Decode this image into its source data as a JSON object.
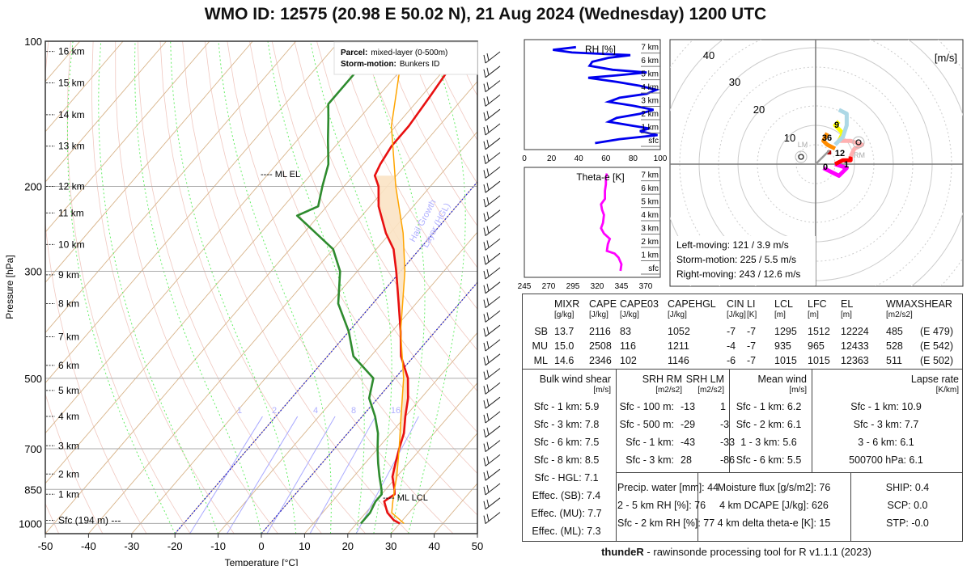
{
  "title": "WMO ID: 12575 (20.98 E 50.02 N), 21 Aug 2024 (Wednesday) 1200 UTC",
  "footer": {
    "bold": "thundeR",
    "rest": " - rawinsonde processing tool for R v1.1.1 (2023)"
  },
  "chart_data": [
    {
      "type": "line",
      "name": "skew-T",
      "xlabel": "Temperature [°C]",
      "ylabel": "Pressure [hPa]",
      "xlim": [
        -50,
        50
      ],
      "ylim": [
        1050,
        100
      ],
      "x_ticks": [
        "-50",
        "-40",
        "-30",
        "-20",
        "-10",
        "0",
        "10",
        "20",
        "30",
        "40",
        "50"
      ],
      "y_ticks": [
        "100",
        "200",
        "300",
        "500",
        "700",
        "850",
        "1000"
      ],
      "height_labels": [
        "16 km",
        "15 km",
        "14 km",
        "13 km",
        "12 km",
        "11 km",
        "10 km",
        "9 km",
        "8 km",
        "7 km",
        "6 km",
        "5 km",
        "4 km",
        "3 km",
        "2 km",
        "1 km",
        "Sfc (194 m) ---"
      ],
      "height_pressures": [
        105,
        122,
        142,
        165,
        200,
        227,
        264,
        305,
        350,
        410,
        470,
        530,
        600,
        690,
        790,
        870,
        985
      ],
      "annotations": {
        "ml_el": "---- ML EL",
        "ml_lcl": "---- ML LCL",
        "hgl": "Hail Growth",
        "hgl2": "Layer (HGL)",
        "mixing_ratio_labels": [
          "1",
          "2",
          "4",
          "8",
          "16"
        ]
      },
      "legend": {
        "parcel_label": "Parcel:",
        "parcel_value": "mixed-layer (0-500m)",
        "storm_label": "Storm-motion:",
        "storm_value": "Bunkers ID"
      },
      "series": [
        {
          "name": "temperature",
          "color": "#e81010",
          "points": [
            [
              1000,
              30
            ],
            [
              985,
              28
            ],
            [
              950,
              25
            ],
            [
              900,
              22
            ],
            [
              870,
              23
            ],
            [
              850,
              22
            ],
            [
              800,
              19
            ],
            [
              750,
              17
            ],
            [
              700,
              15
            ],
            [
              650,
              13
            ],
            [
              600,
              10
            ],
            [
              550,
              7
            ],
            [
              500,
              3
            ],
            [
              450,
              -3
            ],
            [
              400,
              -8
            ],
            [
              350,
              -14
            ],
            [
              300,
              -21
            ],
            [
              270,
              -26
            ],
            [
              250,
              -31
            ],
            [
              220,
              -38
            ],
            [
              200,
              -42
            ],
            [
              190,
              -45
            ],
            [
              180,
              -46
            ],
            [
              165,
              -47
            ],
            [
              150,
              -47
            ],
            [
              130,
              -48
            ],
            [
              115,
              -49
            ],
            [
              100,
              -50
            ]
          ]
        },
        {
          "name": "dewpoint",
          "color": "#2e8b2e",
          "points": [
            [
              1000,
              21
            ],
            [
              950,
              21
            ],
            [
              900,
              20
            ],
            [
              870,
              20
            ],
            [
              850,
              19
            ],
            [
              800,
              16
            ],
            [
              750,
              13
            ],
            [
              700,
              10
            ],
            [
              650,
              7
            ],
            [
              600,
              3
            ],
            [
              550,
              -2
            ],
            [
              500,
              -5
            ],
            [
              450,
              -14
            ],
            [
              400,
              -20
            ],
            [
              350,
              -28
            ],
            [
              300,
              -34
            ],
            [
              270,
              -40
            ],
            [
              240,
              -51
            ],
            [
              230,
              -55
            ],
            [
              220,
              -52
            ],
            [
              200,
              -55
            ],
            [
              180,
              -58
            ],
            [
              160,
              -63
            ],
            [
              145,
              -67
            ],
            [
              135,
              -70
            ],
            [
              120,
              -70
            ],
            [
              100,
              -70
            ]
          ]
        },
        {
          "name": "ml-parcel",
          "color": "#ffa500",
          "points": [
            [
              1000,
              31
            ],
            [
              950,
              26
            ],
            [
              900,
              24
            ],
            [
              850,
              22
            ],
            [
              800,
              20
            ],
            [
              700,
              15
            ],
            [
              600,
              9
            ],
            [
              500,
              2
            ],
            [
              400,
              -8
            ],
            [
              300,
              -19
            ],
            [
              250,
              -27
            ],
            [
              200,
              -38
            ],
            [
              150,
              -51
            ],
            [
              100,
              -65
            ]
          ]
        }
      ]
    },
    {
      "type": "line",
      "name": "RH profile",
      "title": "RH [%]",
      "xlim": [
        0,
        100
      ],
      "x_ticks": [
        "0",
        "20",
        "40",
        "60",
        "80",
        "100"
      ],
      "height_labels": [
        "7 km",
        "6 km",
        "5 km",
        "4 km",
        "3 km",
        "2 km",
        "1 km",
        "sfc"
      ],
      "series": [
        {
          "name": "RH",
          "color": "#0000ee",
          "points": [
            [
              0,
              52
            ],
            [
              0.3,
              70
            ],
            [
              0.6,
              98
            ],
            [
              0.9,
              85
            ],
            [
              1.1,
              92
            ],
            [
              1.3,
              80
            ],
            [
              1.6,
              62
            ],
            [
              1.9,
              68
            ],
            [
              2.2,
              85
            ],
            [
              2.5,
              95
            ],
            [
              2.8,
              80
            ],
            [
              3.1,
              62
            ],
            [
              3.4,
              70
            ],
            [
              3.7,
              90
            ],
            [
              4.0,
              97
            ],
            [
              4.3,
              85
            ],
            [
              4.6,
              68
            ],
            [
              4.9,
              47
            ],
            [
              5.1,
              70
            ],
            [
              5.3,
              90
            ],
            [
              5.5,
              65
            ],
            [
              5.8,
              48
            ],
            [
              6.1,
              50
            ],
            [
              6.4,
              62
            ],
            [
              6.6,
              78
            ],
            [
              6.8,
              35
            ],
            [
              7.0,
              21
            ],
            [
              7.2,
              38
            ]
          ]
        }
      ]
    },
    {
      "type": "line",
      "name": "Theta-e profile",
      "title": "Theta-e [K]",
      "xlim": [
        245,
        385
      ],
      "x_ticks": [
        "245",
        "270",
        "295",
        "320",
        "345",
        "370"
      ],
      "height_labels": [
        "7 km",
        "6 km",
        "5 km",
        "4 km",
        "3 km",
        "2 km",
        "1 km",
        "sfc"
      ],
      "series": [
        {
          "name": "theta-e",
          "color": "#ff00ff",
          "points": [
            [
              0,
              344
            ],
            [
              0.5,
              345
            ],
            [
              1.0,
              342
            ],
            [
              1.3,
              338
            ],
            [
              1.5,
              330
            ],
            [
              2.0,
              331
            ],
            [
              2.4,
              333
            ],
            [
              2.8,
              327
            ],
            [
              3.2,
              324
            ],
            [
              3.6,
              326
            ],
            [
              4.2,
              327
            ],
            [
              4.6,
              325
            ],
            [
              5.0,
              324
            ],
            [
              5.4,
              328
            ],
            [
              6.0,
              328
            ],
            [
              6.5,
              329
            ],
            [
              7.0,
              329
            ],
            [
              7.3,
              330
            ]
          ]
        }
      ]
    },
    {
      "type": "line",
      "name": "hodograph",
      "unit_label": "[m/s]",
      "ring_labels": [
        "10",
        "20",
        "30",
        "40"
      ],
      "storm_labels": {
        "lm": "LM",
        "rm": "RM"
      },
      "height_labels": [
        "0",
        "1",
        "12",
        "36",
        "9"
      ],
      "info": [
        "Left-moving: 121 / 3.9 m/s",
        "Storm-motion: 225 / 5.5 m/s",
        "Right-moving: 243 / 12.6 m/s"
      ],
      "series": [
        {
          "name": "0-1 km",
          "color": "#ff00ff",
          "points": [
            [
              2,
              -1
            ],
            [
              4,
              -2
            ],
            [
              6,
              -3
            ],
            [
              7,
              -2
            ],
            [
              8,
              -1
            ],
            [
              5,
              0
            ]
          ]
        },
        {
          "name": "1-3 km",
          "color": "#ff0000",
          "points": [
            [
              5,
              0
            ],
            [
              7,
              1
            ],
            [
              9,
              1
            ],
            [
              9,
              2
            ]
          ]
        },
        {
          "name": "3-6 km",
          "color": "#ffb0b0",
          "points": [
            [
              9,
              2
            ],
            [
              10,
              4
            ],
            [
              12,
              5
            ],
            [
              9,
              6
            ],
            [
              6,
              6
            ]
          ]
        },
        {
          "name": "6-9 km",
          "color": "#ffff00",
          "points": [
            [
              6,
              6
            ],
            [
              7,
              8
            ],
            [
              5,
              10
            ],
            [
              6,
              11
            ]
          ]
        },
        {
          "name": "9-12 km",
          "color": "#add8e6",
          "points": [
            [
              5,
              5
            ],
            [
              7,
              7
            ],
            [
              8,
              10
            ],
            [
              8,
              13
            ],
            [
              6,
              14
            ]
          ]
        },
        {
          "name": "12+ km",
          "color": "#ff8c00",
          "points": [
            [
              3,
              8
            ],
            [
              2,
              6
            ],
            [
              3,
              5
            ],
            [
              5,
              4
            ]
          ]
        },
        {
          "name": "dark",
          "color": "#b00000",
          "points": [
            [
              3,
              3
            ],
            [
              4,
              3
            ]
          ]
        }
      ]
    }
  ],
  "params_table": {
    "headers": [
      "MIXR",
      "CAPE",
      "CAPE03",
      "CAPEHGL",
      "CIN",
      "LI",
      "LCL",
      "LFC",
      "EL",
      "WMAXSHEAR"
    ],
    "units": [
      "[g/kg]",
      "[J/kg]",
      "[J/kg]",
      "[J/kg]",
      "[J/kg]",
      "[K]",
      "[m]",
      "[m]",
      "[m]",
      "[m2/s2]"
    ],
    "rows": [
      {
        "label": "SB",
        "values": [
          "13.7",
          "2116",
          "83",
          "1052",
          "-7",
          "-7",
          "1295",
          "1512",
          "12224",
          "485",
          "(E 479)"
        ]
      },
      {
        "label": "MU",
        "values": [
          "15.0",
          "2508",
          "116",
          "1211",
          "-4",
          "-7",
          "935",
          "965",
          "12433",
          "528",
          "(E 542)"
        ]
      },
      {
        "label": "ML",
        "values": [
          "14.6",
          "2346",
          "102",
          "1146",
          "-6",
          "-7",
          "1015",
          "1015",
          "12363",
          "511",
          "(E 502)"
        ]
      }
    ]
  },
  "bulk_shear": {
    "title": "Bulk wind shear",
    "unit": "[m/s]",
    "items": [
      "Sfc - 1 km: 5.9",
      "Sfc - 3 km: 7.8",
      "Sfc - 6 km: 7.5",
      "Sfc - 8 km: 8.5",
      "Sfc - HGL: 7.1",
      "Effec. (SB): 7.4",
      "Effec. (MU): 7.7",
      "Effec. (ML): 7.3"
    ]
  },
  "srh": {
    "title_rm": "SRH RM",
    "title_lm": "SRH LM",
    "unit_rm": "[m2/s2]",
    "unit_lm": "[m2/s2]",
    "rows": [
      {
        "label": "Sfc - 100 m:",
        "rm": "-13",
        "lm": "1"
      },
      {
        "label": "Sfc - 500 m:",
        "rm": "-29",
        "lm": "-3"
      },
      {
        "label": "Sfc - 1 km:",
        "rm": "-43",
        "lm": "-33"
      },
      {
        "label": "Sfc - 3 km:",
        "rm": "28",
        "lm": "-86"
      }
    ]
  },
  "mean_wind": {
    "title": "Mean wind",
    "unit": "[m/s]",
    "items": [
      "Sfc - 1 km: 6.2",
      "Sfc - 2 km: 6.1",
      "1 - 3 km: 5.6",
      "Sfc - 6 km: 5.5"
    ]
  },
  "lapse_rate": {
    "title": "Lapse rate",
    "unit": "[K/km]",
    "items": [
      "Sfc - 1 km: 10.9",
      "Sfc - 3 km: 7.7",
      "3 - 6 km: 6.1",
      "500700 hPa: 6.1"
    ]
  },
  "moisture": {
    "items": [
      "Precip. water [mm]: 44",
      "2 - 5 km RH [%]: 76",
      "Sfc - 2 km RH [%]: 77"
    ]
  },
  "flux": {
    "items": [
      "Moisture flux [g/s/m2]: 76",
      "4 km DCAPE [J/kg]: 626",
      "4 km delta theta-e [K]: 15"
    ]
  },
  "composite": {
    "items": [
      "SHIP: 0.4",
      "SCP: 0.0",
      "STP: -0.0"
    ]
  }
}
